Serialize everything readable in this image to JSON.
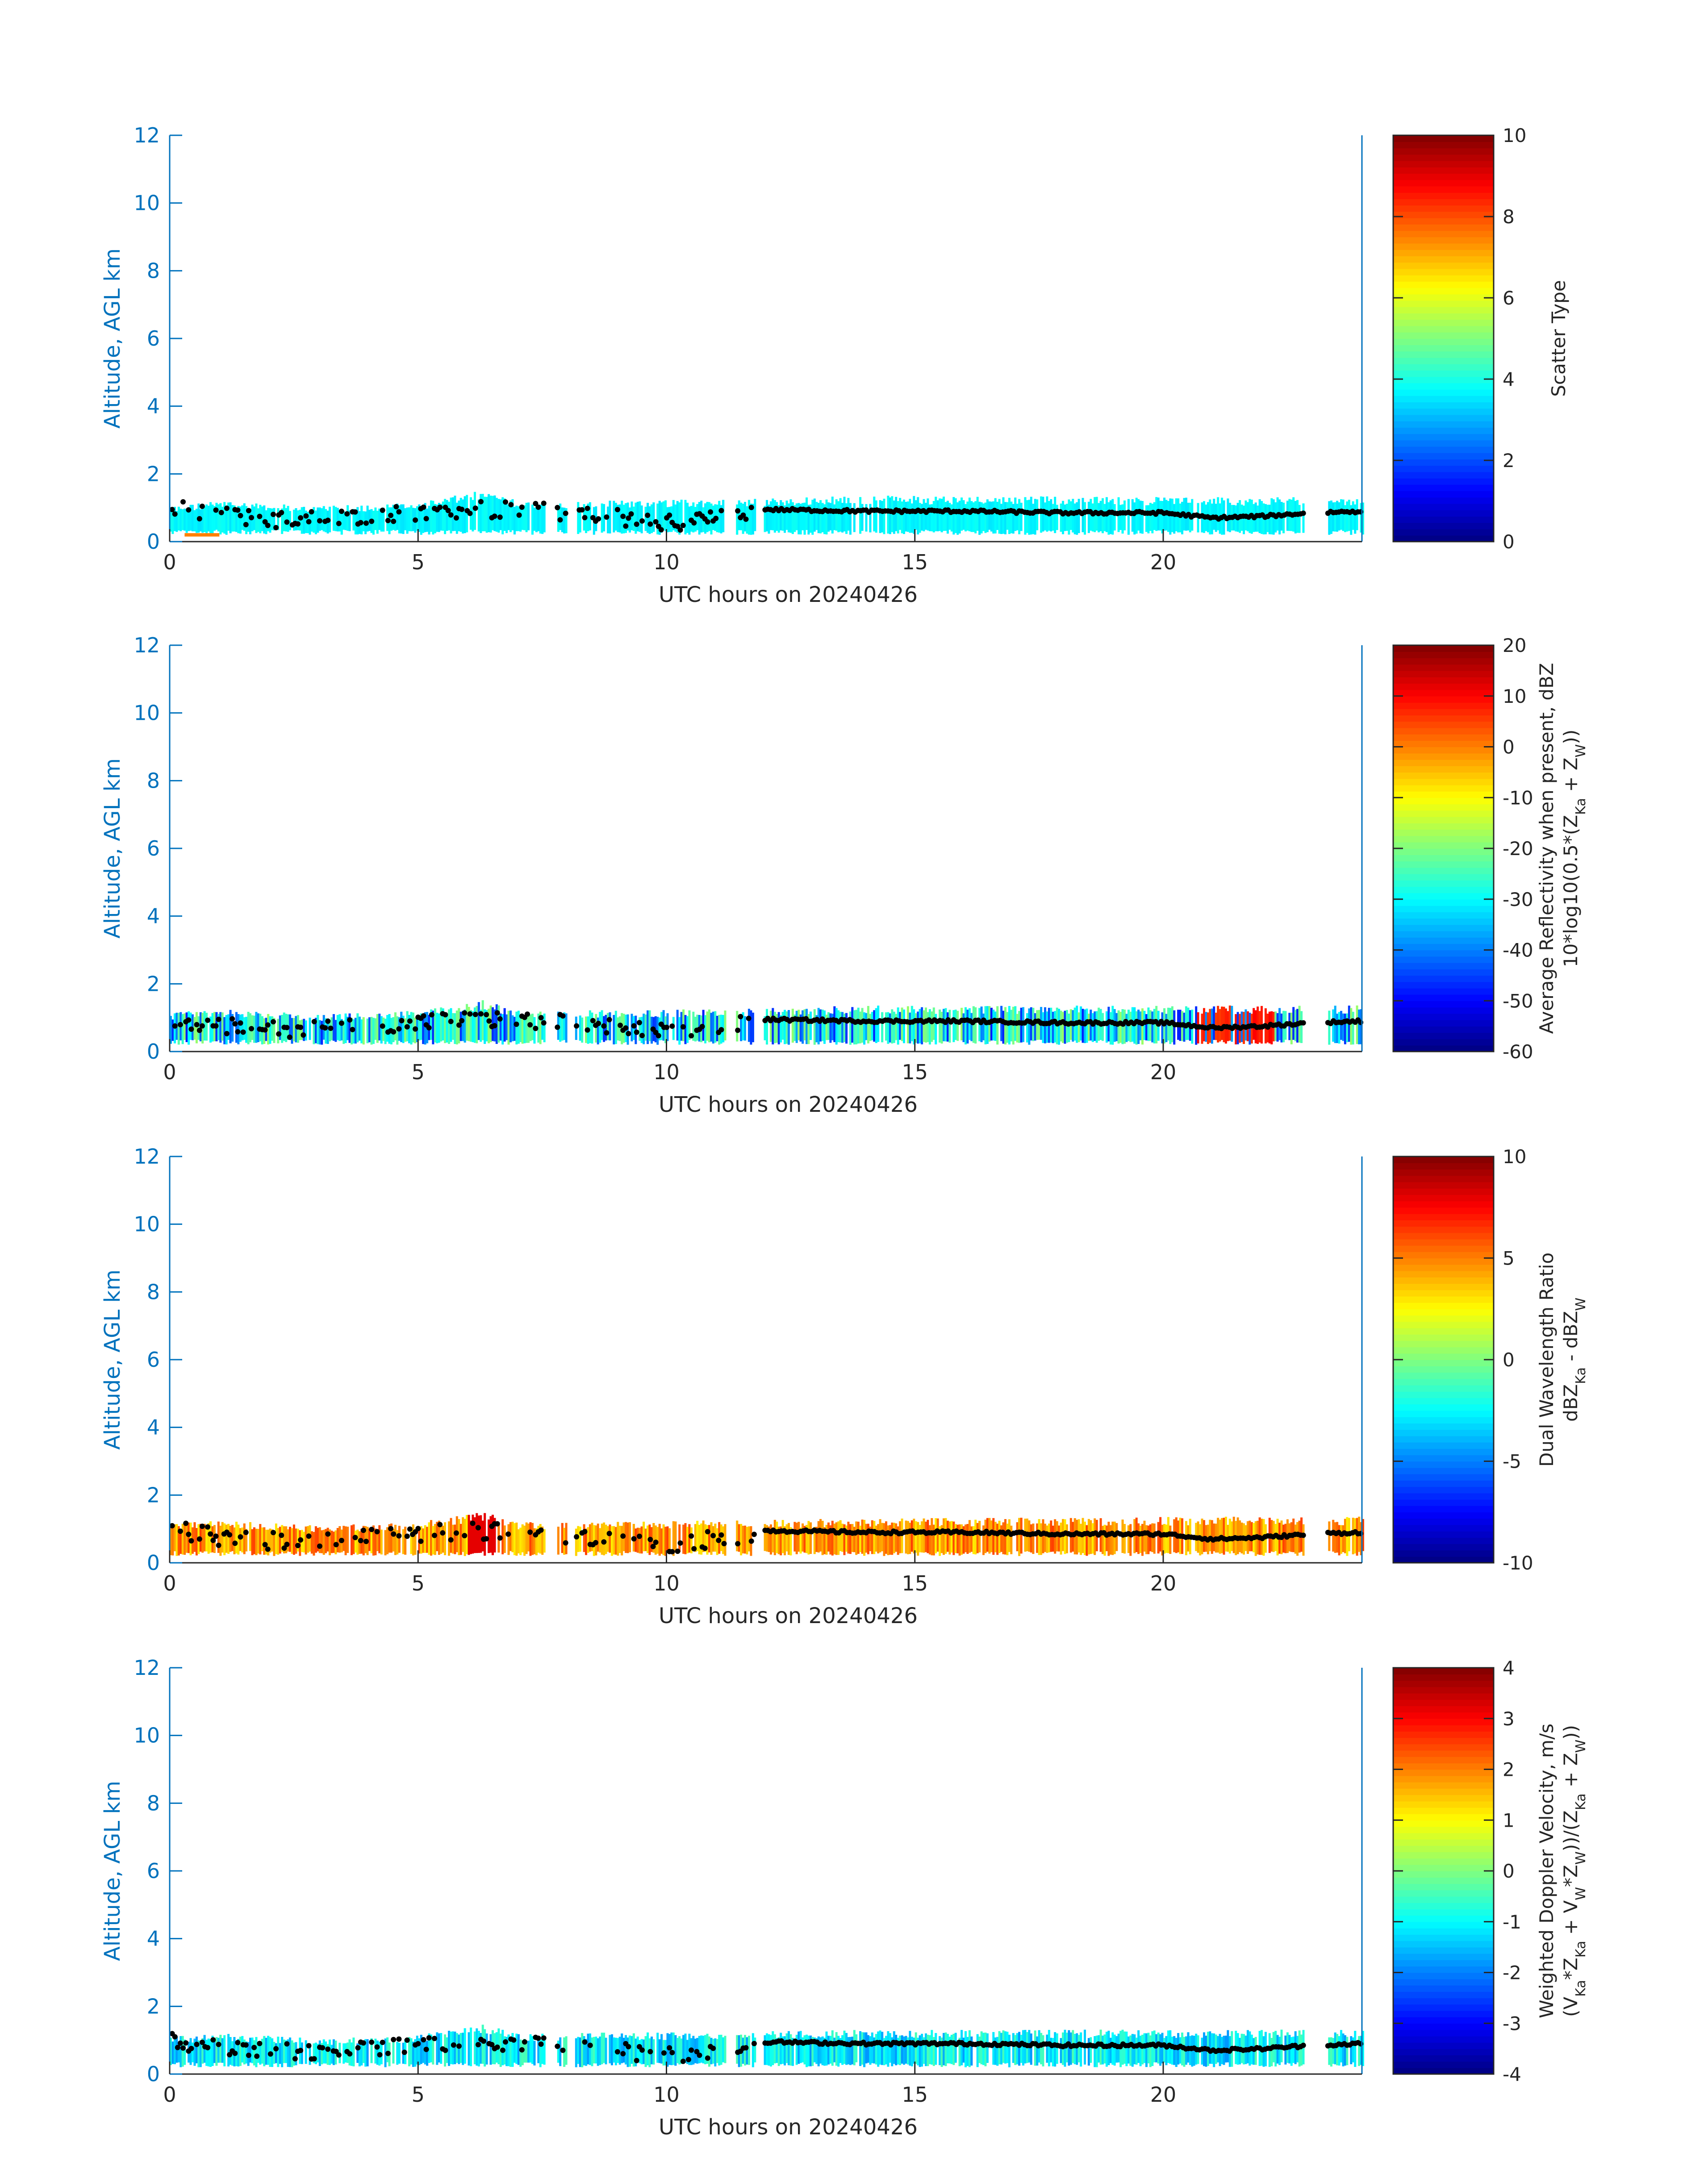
{
  "figure": {
    "panel_count": 4
  },
  "chart_data": [
    {
      "type": "heatmap",
      "title": "",
      "xlabel": "UTC hours on 20240426",
      "ylabel": "Altitude, AGL km",
      "xlim": [
        0,
        24
      ],
      "ylim": [
        0,
        12
      ],
      "xticks": [
        0,
        5,
        10,
        15,
        20
      ],
      "yticks": [
        0,
        2,
        4,
        6,
        8,
        10,
        12
      ],
      "colorbar": {
        "label_lines": [
          "Scatter Type"
        ],
        "clim": [
          0,
          10
        ],
        "ticks": [
          0,
          2,
          4,
          6,
          8,
          10
        ],
        "colormap": "jet"
      },
      "fill_color_value": 3.7,
      "fill_extra": [
        {
          "x0": 0.3,
          "x1": 1.0,
          "color_value": 7.5,
          "ytop": 0.25
        }
      ],
      "cloud_base": "black-dots",
      "cloud_top_km": [
        [
          0,
          1.0
        ],
        [
          1,
          1.15
        ],
        [
          3,
          1.0
        ],
        [
          5,
          1.1
        ],
        [
          6.3,
          1.45
        ],
        [
          7,
          1.15
        ],
        [
          11.5,
          1.2
        ],
        [
          14,
          1.3
        ],
        [
          21,
          1.25
        ],
        [
          24,
          1.25
        ]
      ],
      "cloud_base_km": [
        [
          0,
          1.0
        ],
        [
          1,
          0.75
        ],
        [
          2,
          0.65
        ],
        [
          3,
          0.7
        ],
        [
          4.5,
          0.8
        ],
        [
          6,
          0.95
        ],
        [
          7.5,
          0.9
        ],
        [
          9,
          0.7
        ],
        [
          10,
          0.55
        ],
        [
          11,
          0.7
        ],
        [
          12,
          0.95
        ],
        [
          14,
          0.9
        ],
        [
          16,
          0.9
        ],
        [
          18,
          0.85
        ],
        [
          20,
          0.85
        ],
        [
          21,
          0.7
        ],
        [
          22,
          0.75
        ],
        [
          23,
          0.85
        ],
        [
          24,
          0.9
        ]
      ],
      "gaps_hours": [
        [
          7.55,
          7.8
        ],
        [
          8.0,
          8.15
        ],
        [
          11.2,
          11.4
        ],
        [
          11.8,
          11.95
        ],
        [
          22.85,
          23.3
        ]
      ]
    },
    {
      "type": "heatmap",
      "title": "",
      "xlabel": "UTC hours on 20240426",
      "ylabel": "Altitude, AGL km",
      "xlim": [
        0,
        24
      ],
      "ylim": [
        0,
        12
      ],
      "xticks": [
        0,
        5,
        10,
        15,
        20
      ],
      "yticks": [
        0,
        2,
        4,
        6,
        8,
        10,
        12
      ],
      "colorbar": {
        "label_lines": [
          "Average Reflectivity when present, dBZ",
          "10*log10(0.5*(Z_Ka + Z_W))"
        ],
        "clim": [
          -60,
          20
        ],
        "ticks": [
          -60,
          -50,
          -40,
          -30,
          -20,
          -10,
          0,
          10,
          20
        ],
        "colormap": "jet"
      },
      "fill_color_value": -25,
      "fill_extra": [],
      "cloud_base": "black-dots",
      "cloud_top_km": [
        [
          0,
          1.1
        ],
        [
          1,
          1.2
        ],
        [
          3,
          1.05
        ],
        [
          5,
          1.15
        ],
        [
          6.3,
          1.45
        ],
        [
          7,
          1.15
        ],
        [
          11.5,
          1.2
        ],
        [
          14,
          1.3
        ],
        [
          21,
          1.3
        ],
        [
          24,
          1.3
        ]
      ],
      "cloud_base_km": [
        [
          0,
          1.0
        ],
        [
          1,
          0.75
        ],
        [
          2,
          0.65
        ],
        [
          3,
          0.7
        ],
        [
          4.5,
          0.8
        ],
        [
          6,
          0.95
        ],
        [
          7.5,
          0.9
        ],
        [
          9,
          0.7
        ],
        [
          10,
          0.55
        ],
        [
          11,
          0.7
        ],
        [
          12,
          0.95
        ],
        [
          14,
          0.9
        ],
        [
          16,
          0.9
        ],
        [
          18,
          0.85
        ],
        [
          20,
          0.85
        ],
        [
          21,
          0.7
        ],
        [
          22,
          0.75
        ],
        [
          23,
          0.85
        ],
        [
          24,
          0.9
        ]
      ],
      "gaps_hours": [
        [
          7.55,
          7.8
        ],
        [
          8.0,
          8.15
        ],
        [
          11.2,
          11.4
        ],
        [
          11.8,
          11.95
        ],
        [
          22.85,
          23.3
        ]
      ]
    },
    {
      "type": "heatmap",
      "title": "",
      "xlabel": "UTC hours on 20240426",
      "ylabel": "Altitude, AGL km",
      "xlim": [
        0,
        24
      ],
      "ylim": [
        0,
        12
      ],
      "xticks": [
        0,
        5,
        10,
        15,
        20
      ],
      "yticks": [
        0,
        2,
        4,
        6,
        8,
        10,
        12
      ],
      "colorbar": {
        "label_lines": [
          "Dual Wavelength Ratio",
          "dBZ_Ka - dBZ_W"
        ],
        "clim": [
          -10,
          10
        ],
        "ticks": [
          -10,
          -5,
          0,
          5,
          10
        ],
        "colormap": "jet"
      },
      "fill_color_value": 4.5,
      "fill_extra": [],
      "cloud_base": "black-dots",
      "cloud_top_km": [
        [
          0,
          1.1
        ],
        [
          1,
          1.2
        ],
        [
          3,
          1.05
        ],
        [
          5,
          1.15
        ],
        [
          6.3,
          1.45
        ],
        [
          7,
          1.15
        ],
        [
          11.5,
          1.2
        ],
        [
          14,
          1.25
        ],
        [
          21,
          1.3
        ],
        [
          24,
          1.3
        ]
      ],
      "cloud_base_km": [
        [
          0,
          1.0
        ],
        [
          1,
          0.75
        ],
        [
          2,
          0.65
        ],
        [
          3,
          0.7
        ],
        [
          4.5,
          0.8
        ],
        [
          6,
          0.95
        ],
        [
          7.5,
          0.9
        ],
        [
          9,
          0.7
        ],
        [
          10,
          0.55
        ],
        [
          11,
          0.7
        ],
        [
          12,
          0.95
        ],
        [
          14,
          0.9
        ],
        [
          16,
          0.9
        ],
        [
          18,
          0.85
        ],
        [
          20,
          0.85
        ],
        [
          21,
          0.7
        ],
        [
          22,
          0.75
        ],
        [
          23,
          0.85
        ],
        [
          24,
          0.9
        ]
      ],
      "gaps_hours": [
        [
          7.55,
          7.8
        ],
        [
          8.0,
          8.15
        ],
        [
          11.2,
          11.4
        ],
        [
          11.8,
          11.95
        ],
        [
          22.85,
          23.3
        ]
      ]
    },
    {
      "type": "heatmap",
      "title": "",
      "xlabel": "UTC hours on 20240426",
      "ylabel": "Altitude, AGL km",
      "xlim": [
        0,
        24
      ],
      "ylim": [
        0,
        12
      ],
      "xticks": [
        0,
        5,
        10,
        15,
        20
      ],
      "yticks": [
        0,
        2,
        4,
        6,
        8,
        10,
        12
      ],
      "colorbar": {
        "label_lines": [
          "Weighted Doppler Velocity, m/s",
          "(V_Ka*Z_Ka + V_W*Z_W))/(Z_Ka + Z_W))"
        ],
        "clim": [
          -4,
          4
        ],
        "ticks": [
          -4,
          -3,
          -2,
          -1,
          0,
          1,
          2,
          3,
          4
        ],
        "colormap": "jet"
      },
      "fill_color_value": -1.1,
      "fill_extra": [],
      "cloud_base": "black-dots",
      "cloud_top_km": [
        [
          0,
          1.05
        ],
        [
          1,
          1.15
        ],
        [
          3,
          1.0
        ],
        [
          5,
          1.1
        ],
        [
          6.3,
          1.4
        ],
        [
          7,
          1.15
        ],
        [
          11.5,
          1.2
        ],
        [
          14,
          1.25
        ],
        [
          21,
          1.25
        ],
        [
          24,
          1.25
        ]
      ],
      "cloud_base_km": [
        [
          0,
          1.0
        ],
        [
          1,
          0.75
        ],
        [
          2,
          0.65
        ],
        [
          3,
          0.7
        ],
        [
          4.5,
          0.8
        ],
        [
          6,
          0.95
        ],
        [
          7.5,
          0.9
        ],
        [
          9,
          0.7
        ],
        [
          10,
          0.55
        ],
        [
          11,
          0.7
        ],
        [
          12,
          0.95
        ],
        [
          14,
          0.9
        ],
        [
          16,
          0.9
        ],
        [
          18,
          0.85
        ],
        [
          20,
          0.85
        ],
        [
          21,
          0.7
        ],
        [
          22,
          0.75
        ],
        [
          23,
          0.85
        ],
        [
          24,
          0.9
        ]
      ],
      "gaps_hours": [
        [
          7.55,
          7.8
        ],
        [
          8.0,
          8.15
        ],
        [
          11.2,
          11.4
        ],
        [
          11.8,
          11.95
        ],
        [
          22.85,
          23.3
        ]
      ]
    }
  ],
  "colors": {
    "axis": "#0072BD",
    "text": "#262626",
    "cloud_base": "#000000"
  }
}
